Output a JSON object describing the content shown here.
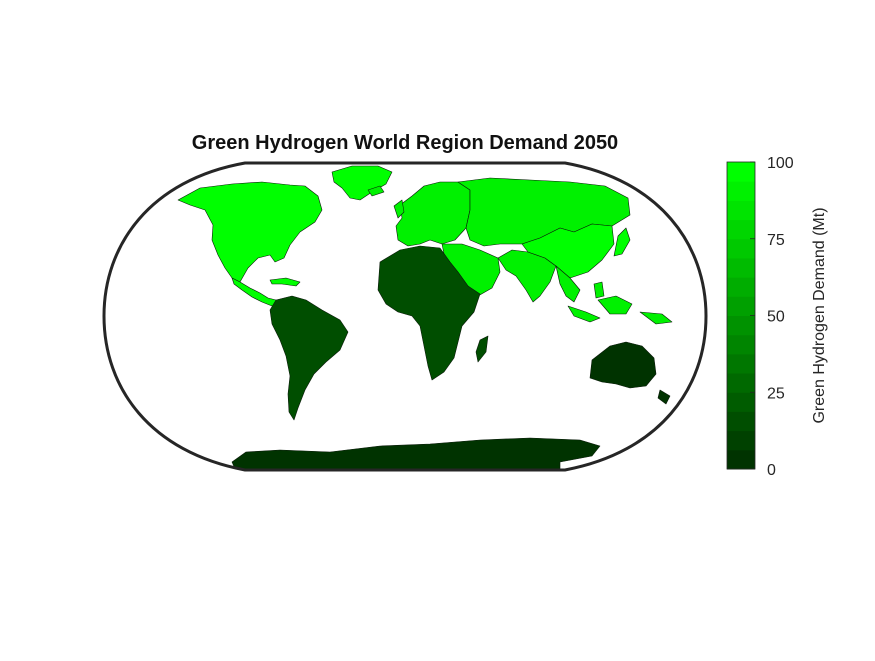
{
  "figure": {
    "title": "Green Hydrogen World Region Demand 2050"
  },
  "colorbar": {
    "label": "Green Hydrogen Demand (Mt)",
    "min": 0,
    "max": 100,
    "ticks": [
      "0",
      "25",
      "50",
      "75",
      "100"
    ],
    "color_low": "#003300",
    "color_high": "#00ff00",
    "levels": 16
  },
  "regions": [
    {
      "name": "North America",
      "value_mt": 100
    },
    {
      "name": "Greenland",
      "value_mt": 100
    },
    {
      "name": "Central America",
      "value_mt": 100
    },
    {
      "name": "Europe",
      "value_mt": 90
    },
    {
      "name": "Russia and Central Asia",
      "value_mt": 90
    },
    {
      "name": "Middle East",
      "value_mt": 90
    },
    {
      "name": "South Asia",
      "value_mt": 90
    },
    {
      "name": "East Asia",
      "value_mt": 95
    },
    {
      "name": "Southeast Asia",
      "value_mt": 90
    },
    {
      "name": "South America",
      "value_mt": 15
    },
    {
      "name": "Africa",
      "value_mt": 15
    },
    {
      "name": "Madagascar",
      "value_mt": 15
    },
    {
      "name": "Oceania",
      "value_mt": 5
    },
    {
      "name": "Antarctica",
      "value_mt": 5
    }
  ]
}
